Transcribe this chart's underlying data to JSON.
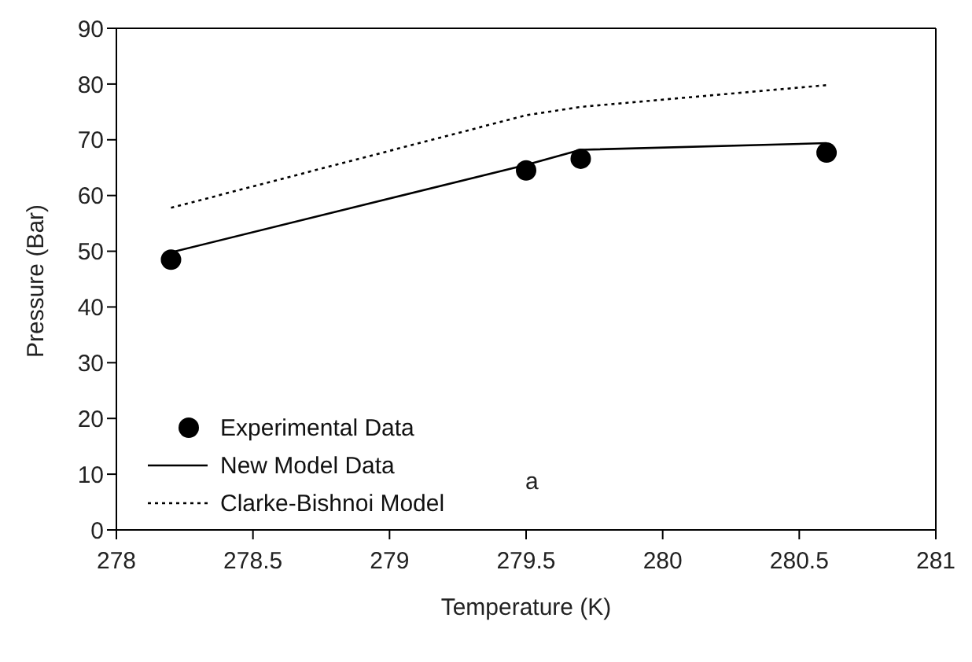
{
  "chart_data": {
    "type": "line",
    "xlabel": "Temperature (K)",
    "ylabel": "Pressure (Bar)",
    "x": [
      278.2,
      279.5,
      279.7,
      280.6
    ],
    "series": [
      {
        "name": "Experimental  Data",
        "type": "scatter",
        "color": "#000000",
        "marker": "circle",
        "values": [
          48.5,
          64.5,
          66.6,
          67.7
        ]
      },
      {
        "name": "New Model Data",
        "color": "#000000",
        "line_style": "solid",
        "marker": "none",
        "values": [
          49.8,
          65.5,
          68.2,
          69.4
        ]
      },
      {
        "name": "Clarke-Bishnoi Model",
        "color": "#000000",
        "line_style": "dotted",
        "marker": "none",
        "values": [
          57.8,
          74.4,
          75.9,
          79.8
        ]
      }
    ],
    "annotations": [
      "a"
    ],
    "xlim": [
      278,
      281
    ],
    "xticks": [
      278,
      278.5,
      279,
      279.5,
      280,
      280.5,
      281
    ],
    "ylim": [
      0,
      90
    ],
    "yticks": [
      0,
      10,
      20,
      30,
      40,
      50,
      60,
      70,
      80,
      90
    ],
    "grid": false,
    "legend": "bottom left"
  }
}
